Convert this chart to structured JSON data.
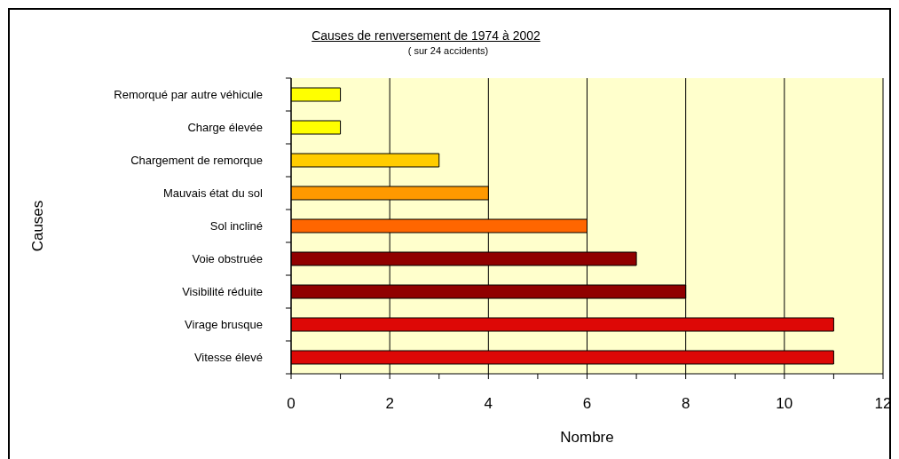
{
  "chart_data": {
    "type": "bar",
    "orientation": "horizontal",
    "title": "Causes de renversement de 1974 à 2002",
    "subtitle": "( sur 24 accidents)",
    "xlabel": "Nombre",
    "ylabel": "Causes",
    "categories": [
      "Remorqué par autre véhicule",
      "Charge élevée",
      "Chargement de remorque",
      "Mauvais état du sol",
      "Sol incliné",
      "Voie obstruée",
      "Visibilité réduite",
      "Virage brusque",
      "Vitesse élevé"
    ],
    "values": [
      1,
      1,
      3,
      4,
      6,
      7,
      8,
      11,
      11
    ],
    "colors": [
      "#ffff00",
      "#ffff00",
      "#ffcc00",
      "#ff9900",
      "#ff6600",
      "#900000",
      "#900000",
      "#dd0806",
      "#dd0806"
    ],
    "xlim": [
      0,
      12
    ],
    "xticks": [
      0,
      {
        "value": 1,
        "label": null
      },
      2,
      {
        "value": 3,
        "label": null
      },
      4,
      {
        "value": 5,
        "label": null
      },
      6,
      {
        "value": 7,
        "label": null
      },
      8,
      {
        "value": 9,
        "label": null
      },
      10,
      {
        "value": 11,
        "label": null
      },
      12
    ],
    "grid": "x"
  }
}
